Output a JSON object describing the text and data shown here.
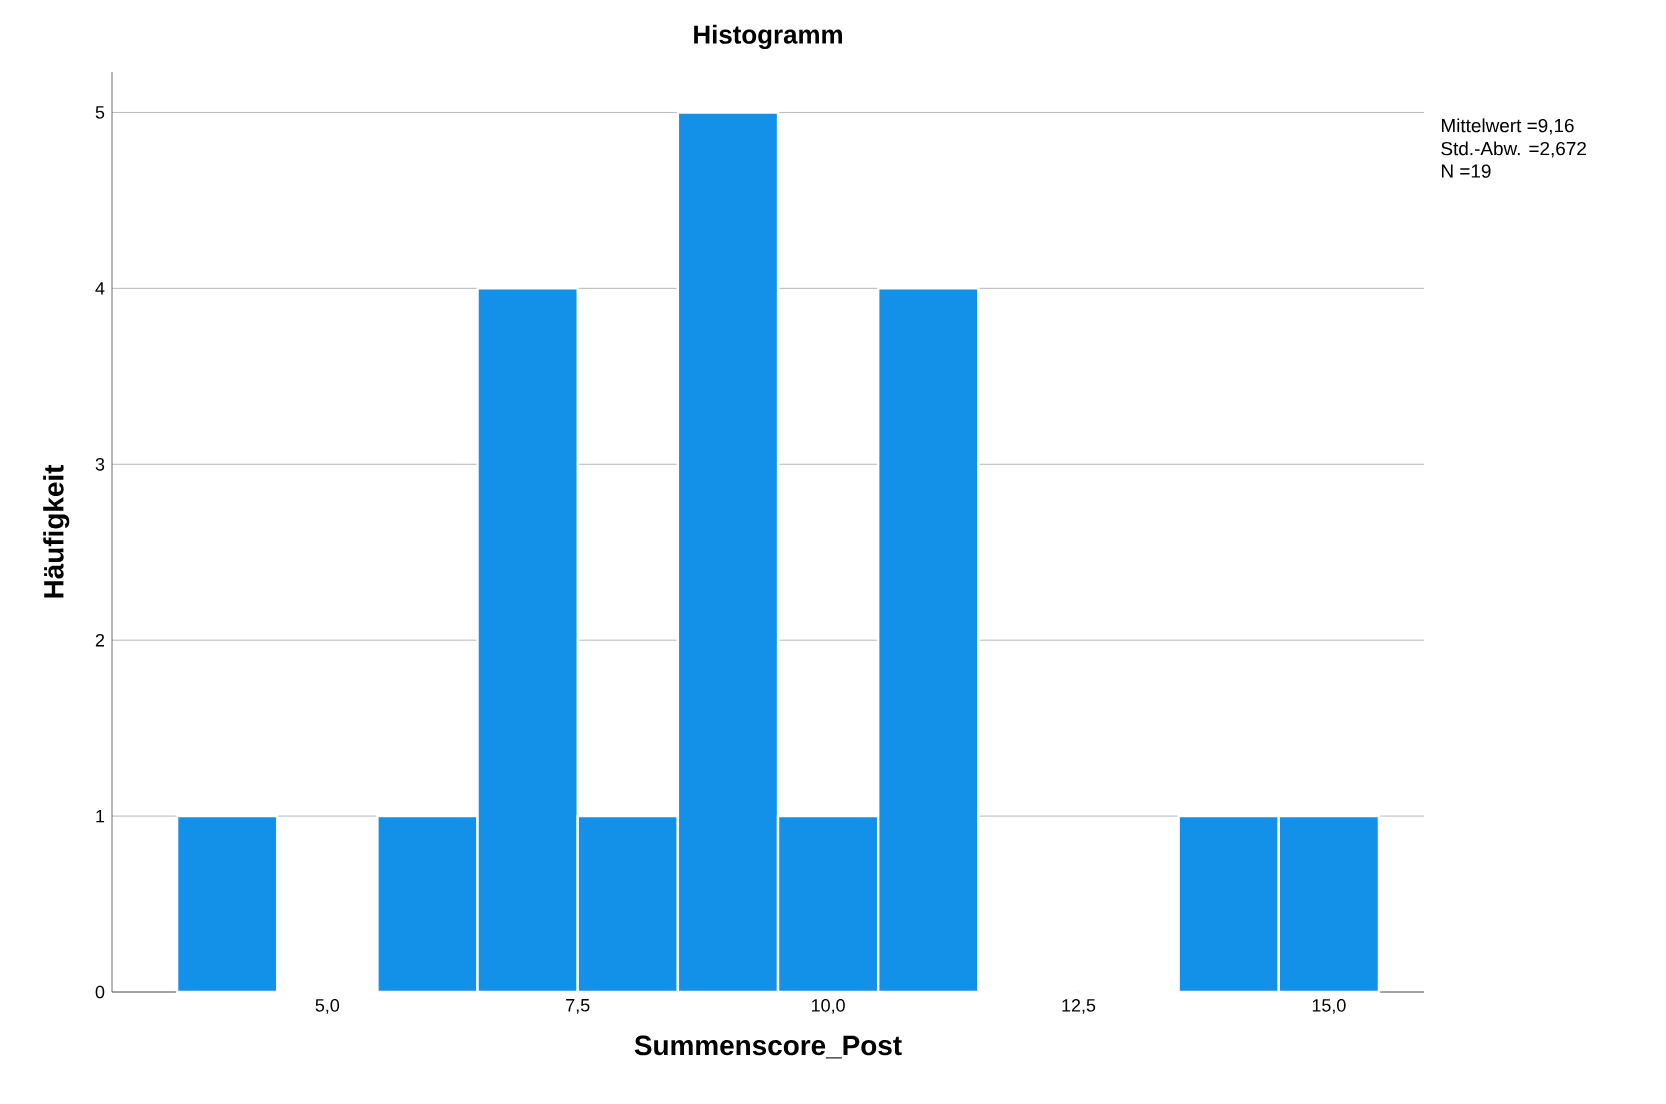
{
  "chart_data": {
    "type": "histogram",
    "title": "Histogramm",
    "xlabel": "Summenscore_Post",
    "ylabel": "Häufigkeit",
    "bins": [
      3.5,
      4.5,
      5.5,
      6.5,
      7.5,
      8.5,
      9.5,
      10.5,
      11.5,
      12.5,
      13.5,
      14.5,
      15.5
    ],
    "values": [
      1,
      0,
      1,
      4,
      1,
      5,
      1,
      4,
      0,
      0,
      1,
      1
    ],
    "color": "#1390e8",
    "xlim": [
      2.85,
      15.95
    ],
    "ylim": [
      0,
      5.23
    ],
    "xticks": [
      {
        "value": 5,
        "label": "5,0"
      },
      {
        "value": 7.5,
        "label": "7,5"
      },
      {
        "value": 10,
        "label": "10,0"
      },
      {
        "value": 12.5,
        "label": "12,5"
      },
      {
        "value": 15,
        "label": "15,0"
      }
    ],
    "yticks": [
      0,
      1,
      2,
      3,
      4,
      5
    ],
    "grid": "y",
    "annotations": [
      "Mittelwert =9,16",
      "Std.-Abw. =2,672",
      "N =19"
    ]
  }
}
